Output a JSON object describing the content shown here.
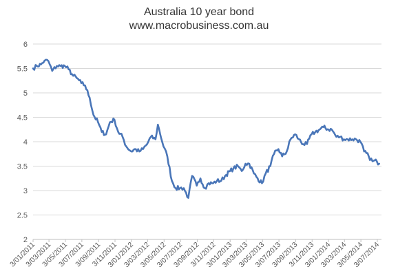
{
  "chart_data": {
    "type": "line",
    "title": "Australia 10 year bond",
    "subtitle": "www.macrobusiness.com.au",
    "xlabel": "",
    "ylabel": "",
    "ylim": [
      2,
      6
    ],
    "yticks": [
      "2",
      "2.5",
      "3",
      "3.5",
      "4",
      "4.5",
      "5",
      "5.5",
      "6"
    ],
    "xticks": [
      "3/01/2011",
      "3/03/2011",
      "3/05/2011",
      "3/07/2011",
      "3/09/2011",
      "3/11/2011",
      "3/01/2012",
      "3/03/2012",
      "3/05/2012",
      "3/07/2012",
      "3/09/2012",
      "3/11/2012",
      "3/01/2013",
      "3/03/2013",
      "3/05/2013",
      "3/07/2013",
      "3/09/2013",
      "3/11/2013",
      "3/01/2014",
      "3/03/2014",
      "3/05/2014",
      "3/07/2014"
    ],
    "grid": true,
    "legend": "none",
    "color": "#4a76b8",
    "series": [
      {
        "points": [
          [
            "3/01/2011",
            5.5
          ],
          [
            "17/01/2011",
            5.55
          ],
          [
            "1/02/2011",
            5.58
          ],
          [
            "15/02/2011",
            5.66
          ],
          [
            "1/03/2011",
            5.65
          ],
          [
            "15/03/2011",
            5.45
          ],
          [
            "1/04/2011",
            5.55
          ],
          [
            "15/04/2011",
            5.55
          ],
          [
            "1/05/2011",
            5.55
          ],
          [
            "15/05/2011",
            5.48
          ],
          [
            "1/06/2011",
            5.35
          ],
          [
            "15/06/2011",
            5.3
          ],
          [
            "1/07/2011",
            5.2
          ],
          [
            "15/07/2011",
            5.15
          ],
          [
            "1/08/2011",
            4.9
          ],
          [
            "15/08/2011",
            4.55
          ],
          [
            "1/09/2011",
            4.4
          ],
          [
            "15/09/2011",
            4.2
          ],
          [
            "1/10/2011",
            4.15
          ],
          [
            "15/10/2011",
            4.4
          ],
          [
            "1/11/2011",
            4.45
          ],
          [
            "15/11/2011",
            4.2
          ],
          [
            "1/12/2011",
            4.1
          ],
          [
            "15/12/2011",
            3.9
          ],
          [
            "3/01/2012",
            3.8
          ],
          [
            "15/01/2012",
            3.85
          ],
          [
            "1/02/2012",
            3.8
          ],
          [
            "15/02/2012",
            3.85
          ],
          [
            "1/03/2012",
            3.95
          ],
          [
            "15/03/2012",
            4.1
          ],
          [
            "1/04/2012",
            4.05
          ],
          [
            "10/04/2012",
            4.35
          ],
          [
            "1/05/2012",
            3.9
          ],
          [
            "15/05/2012",
            3.7
          ],
          [
            "1/06/2012",
            3.2
          ],
          [
            "15/06/2012",
            3.05
          ],
          [
            "1/07/2012",
            3.05
          ],
          [
            "15/07/2012",
            3.05
          ],
          [
            "1/08/2012",
            2.85
          ],
          [
            "15/08/2012",
            3.3
          ],
          [
            "1/09/2012",
            3.1
          ],
          [
            "15/09/2012",
            3.25
          ],
          [
            "1/10/2012",
            3.05
          ],
          [
            "15/10/2012",
            3.15
          ],
          [
            "1/11/2012",
            3.15
          ],
          [
            "15/11/2012",
            3.2
          ],
          [
            "1/12/2012",
            3.2
          ],
          [
            "15/12/2012",
            3.3
          ],
          [
            "3/01/2013",
            3.4
          ],
          [
            "15/01/2013",
            3.45
          ],
          [
            "1/02/2013",
            3.5
          ],
          [
            "15/02/2013",
            3.4
          ],
          [
            "1/03/2013",
            3.55
          ],
          [
            "15/03/2013",
            3.55
          ],
          [
            "1/04/2013",
            3.35
          ],
          [
            "15/04/2013",
            3.25
          ],
          [
            "1/05/2013",
            3.15
          ],
          [
            "15/05/2013",
            3.35
          ],
          [
            "1/06/2013",
            3.5
          ],
          [
            "15/06/2013",
            3.75
          ],
          [
            "1/07/2013",
            3.85
          ],
          [
            "15/07/2013",
            3.7
          ],
          [
            "1/08/2013",
            3.8
          ],
          [
            "15/08/2013",
            4.05
          ],
          [
            "1/09/2013",
            4.15
          ],
          [
            "15/09/2013",
            4.05
          ],
          [
            "1/10/2013",
            3.95
          ],
          [
            "15/10/2013",
            3.95
          ],
          [
            "1/11/2013",
            4.15
          ],
          [
            "15/11/2013",
            4.2
          ],
          [
            "1/12/2013",
            4.25
          ],
          [
            "15/12/2013",
            4.3
          ],
          [
            "3/01/2014",
            4.25
          ],
          [
            "15/01/2014",
            4.25
          ],
          [
            "1/02/2014",
            4.1
          ],
          [
            "15/02/2014",
            4.1
          ],
          [
            "1/03/2014",
            4.05
          ],
          [
            "15/03/2014",
            4.05
          ],
          [
            "1/04/2014",
            4.05
          ],
          [
            "15/04/2014",
            4.05
          ],
          [
            "1/05/2014",
            4.0
          ],
          [
            "15/05/2014",
            3.8
          ],
          [
            "1/06/2014",
            3.7
          ],
          [
            "15/06/2014",
            3.6
          ],
          [
            "1/07/2014",
            3.6
          ],
          [
            "10/07/2014",
            3.55
          ]
        ]
      }
    ]
  }
}
